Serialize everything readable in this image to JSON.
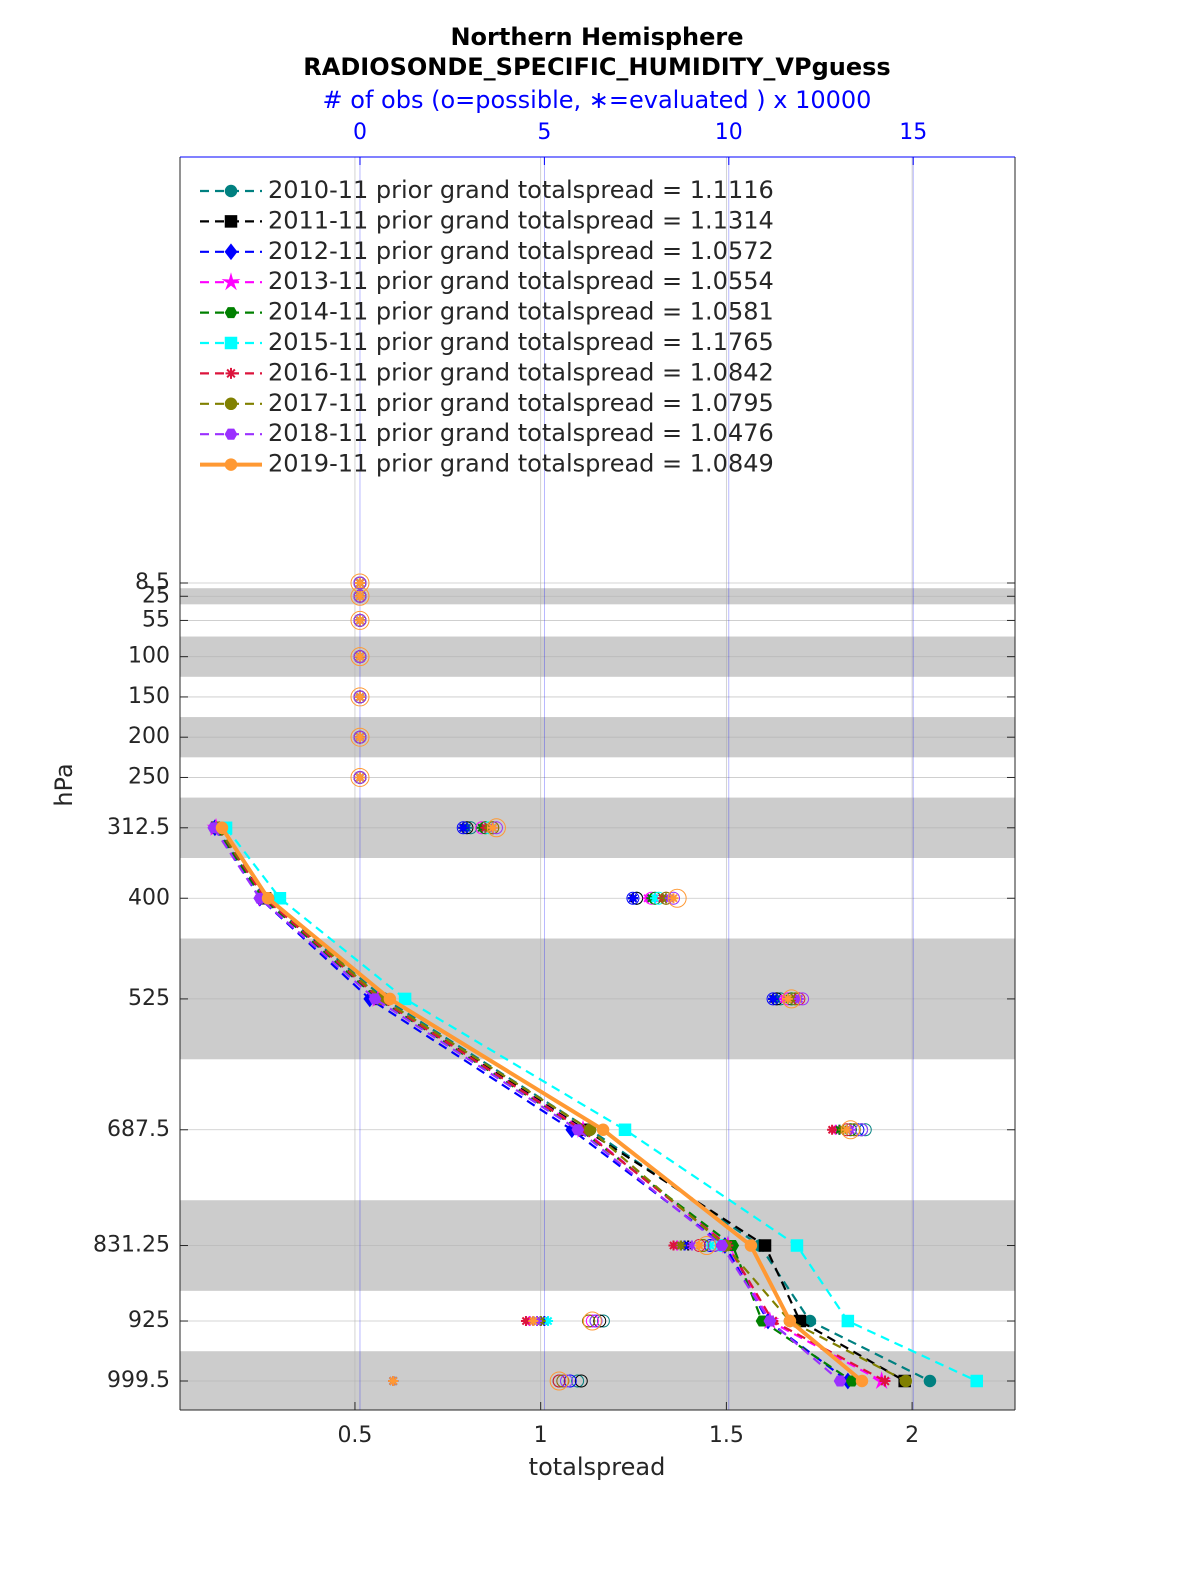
{
  "chart_data": {
    "type": "profile",
    "title": "Northern Hemisphere",
    "subtitle": "RADIOSONDE_SPECIFIC_HUMIDITY_VPguess",
    "x2label": "# of obs (o=possible, ∗=evaluated ) x 10000",
    "xlabel": "totalspread",
    "ylabel": "hPa",
    "xlim": [
      0.029,
      2.277
    ],
    "xticks": [
      0.5,
      1,
      1.5,
      2
    ],
    "x2lim": [
      -4.88,
      17.76
    ],
    "x2ticks": [
      0,
      5,
      10,
      15
    ],
    "ylim": [
      1035.5,
      -520.5
    ],
    "yticks": [
      8.5,
      25,
      55,
      100,
      150,
      200,
      250,
      312.5,
      400,
      525,
      687.5,
      831.25,
      925,
      999.5
    ],
    "y": [
      8.5,
      25,
      55,
      100,
      150,
      200,
      250,
      312.5,
      400,
      525,
      687.5,
      831.25,
      925,
      999.5
    ],
    "shaded_layers": [
      [
        15,
        35
      ],
      [
        75,
        125
      ],
      [
        175,
        225
      ],
      [
        275,
        350
      ],
      [
        450,
        600
      ],
      [
        775,
        887.5
      ],
      [
        962.5,
        1050
      ]
    ],
    "grid": true,
    "legend": "upper left",
    "series": [
      {
        "name": "2010-11 prior grand totalspread = 1.1116",
        "color": "#008080",
        "marker": "circle",
        "linestyle": "dashed",
        "values": [
          null,
          null,
          null,
          null,
          null,
          null,
          null,
          0.123,
          0.258,
          0.58,
          1.133,
          1.59,
          1.725,
          2.048
        ],
        "possible": [
          0,
          0,
          0,
          0,
          0,
          0,
          0,
          3.0,
          7.5,
          11.4,
          13.7,
          9.6,
          6.6,
          5.9
        ],
        "evaluated": [
          0,
          0,
          0,
          0,
          0,
          0,
          0,
          2.9,
          7.4,
          11.3,
          13.2,
          8.8,
          4.8,
          0.9
        ]
      },
      {
        "name": "2011-11 prior grand totalspread = 1.1314",
        "color": "#000000",
        "marker": "square",
        "linestyle": "dashed",
        "values": [
          null,
          null,
          null,
          null,
          null,
          null,
          null,
          0.129,
          0.258,
          0.567,
          1.12,
          1.604,
          1.698,
          1.98
        ],
        "possible": [
          0,
          0,
          0,
          0,
          0,
          0,
          0,
          2.9,
          7.5,
          11.3,
          13.6,
          9.6,
          6.5,
          6.0
        ],
        "evaluated": [
          0,
          0,
          0,
          0,
          0,
          0,
          0,
          2.8,
          7.4,
          11.2,
          13.1,
          8.9,
          4.9,
          0.9
        ]
      },
      {
        "name": "2012-11 prior grand totalspread = 1.0572",
        "color": "#0000ff",
        "marker": "diamond",
        "linestyle": "dashed",
        "values": [
          null,
          null,
          null,
          null,
          null,
          null,
          null,
          0.123,
          0.244,
          0.54,
          1.084,
          1.496,
          1.612,
          1.827
        ],
        "possible": [
          0,
          0,
          0,
          0,
          0,
          0,
          0,
          2.8,
          7.4,
          11.2,
          13.5,
          9.5,
          6.4,
          5.7
        ],
        "evaluated": [
          0,
          0,
          0,
          0,
          0,
          0,
          0,
          2.8,
          7.4,
          11.2,
          13.0,
          8.8,
          5.0,
          0.9
        ]
      },
      {
        "name": "2013-11 prior grand totalspread = 1.0554",
        "color": "#ff00ff",
        "marker": "star",
        "linestyle": "dashed",
        "values": [
          null,
          null,
          null,
          null,
          null,
          null,
          null,
          0.126,
          0.255,
          0.562,
          1.114,
          1.504,
          1.617,
          1.918
        ],
        "possible": [
          0,
          0,
          0,
          0,
          0,
          0,
          0,
          3.3,
          7.9,
          11.6,
          13.4,
          9.3,
          6.3,
          5.5
        ],
        "evaluated": [
          0,
          0,
          0,
          0,
          0,
          0,
          0,
          3.3,
          7.8,
          11.5,
          12.9,
          8.6,
          4.6,
          0.9
        ]
      },
      {
        "name": "2014-11 prior grand totalspread = 1.0581",
        "color": "#008000",
        "marker": "hexagon",
        "linestyle": "dashed",
        "values": [
          null,
          null,
          null,
          null,
          null,
          null,
          null,
          0.126,
          0.252,
          0.562,
          1.106,
          1.517,
          1.596,
          1.838
        ],
        "possible": [
          0,
          0,
          0,
          0,
          0,
          0,
          0,
          3.4,
          8.0,
          11.7,
          13.3,
          9.3,
          6.2,
          5.4
        ],
        "evaluated": [
          0,
          0,
          0,
          0,
          0,
          0,
          0,
          3.3,
          7.9,
          11.6,
          13.0,
          8.7,
          4.7,
          0.9
        ]
      },
      {
        "name": "2015-11 prior grand totalspread = 1.1765",
        "color": "#00ffff",
        "marker": "square",
        "linestyle": "dashed",
        "values": [
          null,
          null,
          null,
          null,
          null,
          null,
          null,
          0.153,
          0.298,
          0.635,
          1.227,
          1.69,
          1.827,
          2.174
        ],
        "possible": [
          0,
          0,
          0,
          0,
          0,
          0,
          0,
          3.5,
          8.1,
          11.8,
          13.6,
          9.8,
          6.4,
          5.6
        ],
        "evaluated": [
          0,
          0,
          0,
          0,
          0,
          0,
          0,
          3.5,
          8.0,
          11.7,
          13.2,
          9.5,
          5.1,
          0.9
        ]
      },
      {
        "name": "2016-11 prior grand totalspread = 1.0842",
        "color": "#dc143c",
        "marker": "asterisk",
        "linestyle": "dashed",
        "values": [
          null,
          null,
          null,
          null,
          null,
          null,
          null,
          0.131,
          0.258,
          0.567,
          1.111,
          1.504,
          1.625,
          1.927
        ],
        "possible": [
          0,
          0,
          0,
          0,
          0,
          0,
          0,
          3.6,
          8.3,
          11.9,
          13.2,
          9.2,
          6.2,
          5.4
        ],
        "evaluated": [
          0,
          0,
          0,
          0,
          0,
          0,
          0,
          3.4,
          8.2,
          11.8,
          12.8,
          8.5,
          4.5,
          0.9
        ]
      },
      {
        "name": "2017-11 prior grand totalspread = 1.0795",
        "color": "#808000",
        "marker": "circle",
        "linestyle": "dashed",
        "values": [
          null,
          null,
          null,
          null,
          null,
          null,
          null,
          0.131,
          0.266,
          0.572,
          1.133,
          1.496,
          1.671,
          1.983
        ],
        "possible": [
          0,
          0,
          0,
          0,
          0,
          0,
          0,
          3.6,
          8.3,
          11.8,
          13.4,
          9.3,
          6.2,
          5.5
        ],
        "evaluated": [
          0,
          0,
          0,
          0,
          0,
          0,
          0,
          3.5,
          8.3,
          11.7,
          13.1,
          8.7,
          4.9,
          0.9
        ]
      },
      {
        "name": "2018-11 prior grand totalspread = 1.0476",
        "color": "#9b30ff",
        "marker": "hexagon",
        "linestyle": "dashed",
        "values": [
          null,
          null,
          null,
          null,
          null,
          null,
          null,
          0.12,
          0.244,
          0.554,
          1.1,
          1.488,
          1.617,
          1.806
        ],
        "possible": [
          0,
          0,
          0,
          0,
          0,
          0,
          0,
          3.7,
          8.5,
          12.0,
          13.6,
          9.6,
          6.4,
          5.6
        ],
        "evaluated": [
          0,
          0,
          0,
          0,
          0,
          0,
          0,
          3.6,
          8.4,
          11.9,
          13.3,
          9.0,
          4.8,
          0.9
        ]
      },
      {
        "name": "2019-11 prior grand totalspread = 1.0849",
        "color": "#ff9933",
        "marker": "circle",
        "linestyle": "solid",
        "values": [
          null,
          null,
          null,
          null,
          null,
          null,
          null,
          0.142,
          0.266,
          0.594,
          1.168,
          1.566,
          1.671,
          1.865
        ],
        "possible": [
          0,
          0,
          0,
          0,
          0,
          0,
          0,
          3.7,
          8.6,
          11.7,
          13.3,
          9.4,
          6.3,
          5.4
        ],
        "evaluated": [
          0,
          0,
          0,
          0,
          0,
          0,
          0,
          3.6,
          8.5,
          11.6,
          13.2,
          9.2,
          4.7,
          0.9
        ]
      }
    ]
  }
}
